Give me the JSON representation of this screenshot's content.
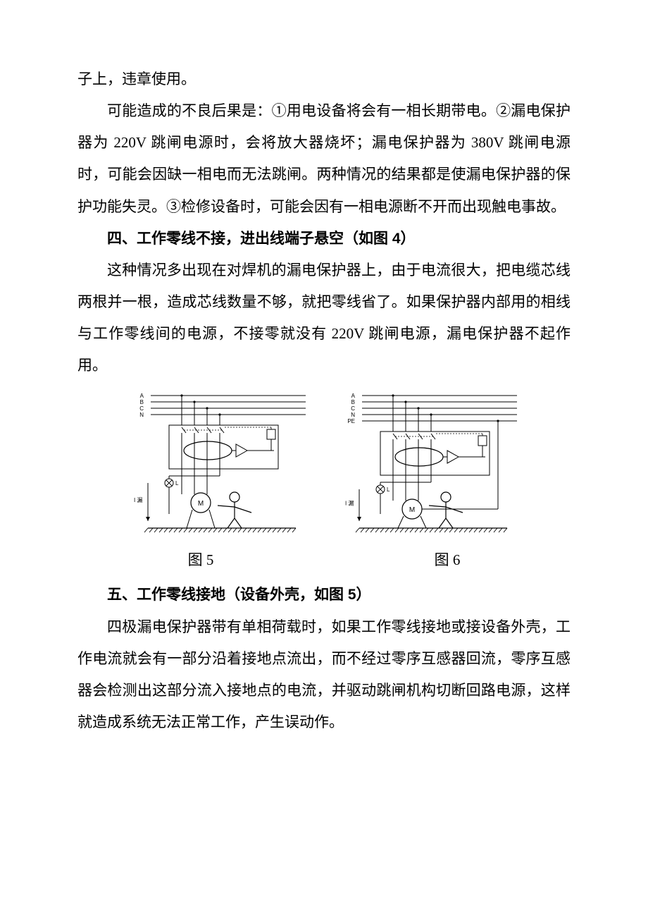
{
  "para_top_fragment": "子上，违章使用。",
  "para_consequences": "可能造成的不良后果是：①用电设备将会有一相长期带电。②漏电保护器为 220V 跳闸电源时，会将放大器烧坏；漏电保护器为 380V 跳闸电源时，可能会因缺一相电而无法跳闸。两种情况的结果都是使漏电保护器的保护功能失灵。③检修设备时，可能会因有一相电源断不开而出现触电事故。",
  "heading_4": "四、工作零线不接，进出线端子悬空（如图 4）",
  "para_section4": "这种情况多出现在对焊机的漏电保护器上，由于电流很大，把电缆芯线两根并一根，造成芯线数量不够，就把零线省了。如果保护器内部用的相线与工作零线间的电源，不接零就没有 220V 跳闸电源，漏电保护器不起作用。",
  "fig5": {
    "caption": "图 5",
    "lines": [
      "A",
      "B",
      "C",
      "N"
    ],
    "ileak_label": "I 漏",
    "motor_label": "M",
    "colors": {
      "stroke": "#000000",
      "bg": "#ffffff"
    }
  },
  "fig6": {
    "caption": "图 6",
    "lines": [
      "A",
      "B",
      "C",
      "N",
      "PE"
    ],
    "ileak_label": "I 漏",
    "motor_label": "M",
    "colors": {
      "stroke": "#000000",
      "bg": "#ffffff"
    }
  },
  "heading_5": "五、工作零线接地（设备外壳，如图 5）",
  "para_section5": "四极漏电保护器带有单相荷载时，如果工作零线接地或接设备外壳，工作电流就会有一部分沿着接地点流出，而不经过零序互感器回流，零序互感器会检测出这部分流入接地点的电流，并驱动跳闸机构切断回路电源，这样就造成系统无法正常工作，产生误动作。"
}
